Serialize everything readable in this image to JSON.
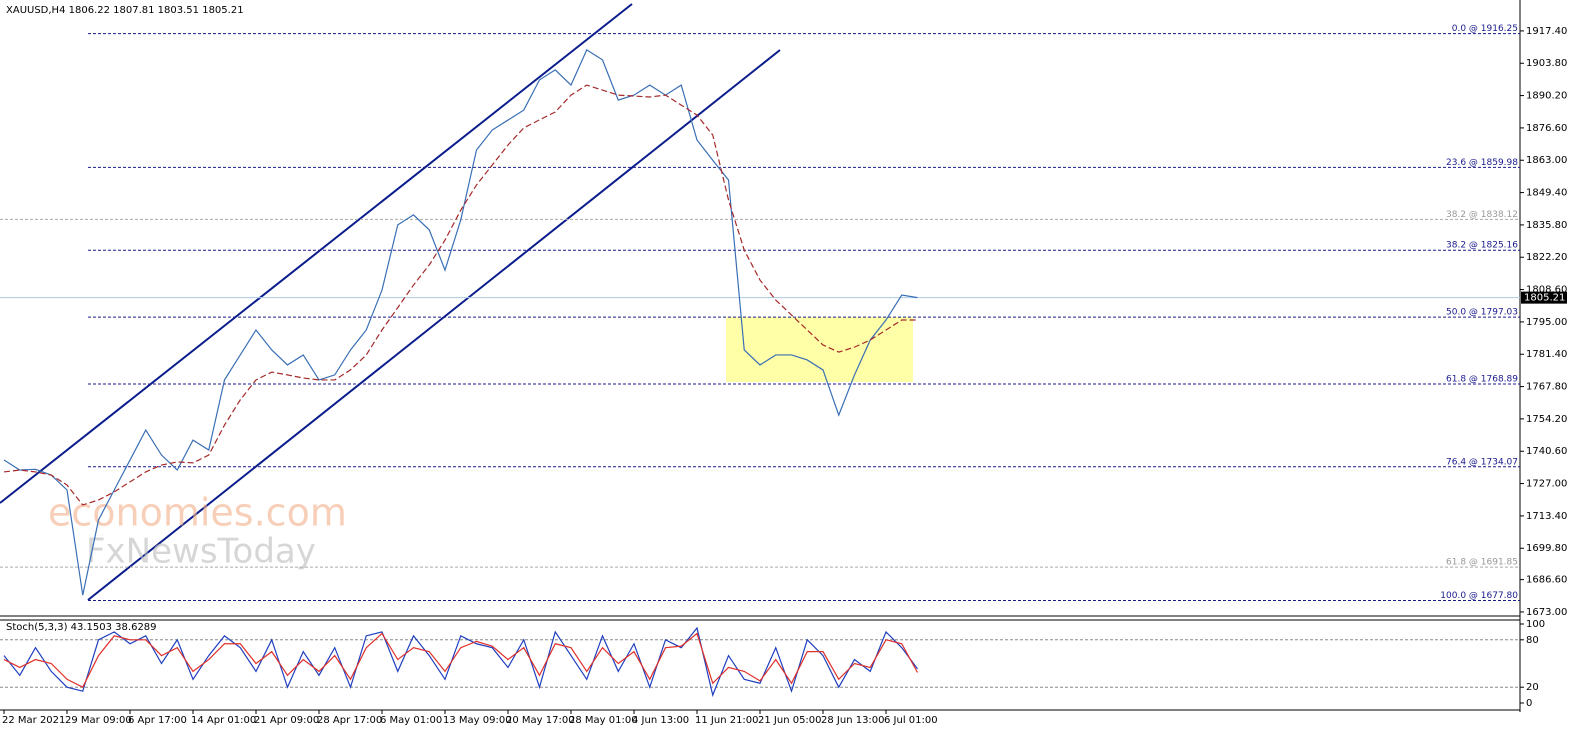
{
  "chart_data": [
    {
      "type": "price",
      "header": "XAUUSD,H4  1806.22 1807.81 1803.51 1805.21",
      "categories": [
        "22 Mar 2021",
        null,
        null,
        null,
        "29 Mar 09:00",
        null,
        null,
        null,
        "6 Apr 17:00",
        null,
        null,
        null,
        "14 Apr 01:00",
        null,
        null,
        null,
        "21 Apr 09:00",
        null,
        null,
        null,
        "28 Apr 17:00",
        null,
        null,
        null,
        "6 May 01:00",
        null,
        null,
        null,
        "13 May 09:00",
        null,
        null,
        null,
        "20 May 17:00",
        null,
        null,
        null,
        "28 May 01:00",
        null,
        null,
        null,
        "4 Jun 13:00",
        null,
        null,
        null,
        "11 Jun 21:00",
        null,
        null,
        null,
        "21 Jun 05:00",
        null,
        null,
        null,
        "28 Jun 13:00",
        null,
        null,
        null,
        "6 Jul 01:00",
        null,
        null
      ],
      "series": [
        {
          "color": "#3a6fb5",
          "values": [
            1736.9,
            1732.7,
            1733,
            1730.6,
            1724.3,
            1680.1,
            1711.7,
            1724.3,
            1736.9,
            1749.5,
            1739,
            1732.7,
            1745.3,
            1741.1,
            1770.6,
            1781.1,
            1791.6,
            1783.2,
            1776.9,
            1781.1,
            1770.6,
            1772.7,
            1783.2,
            1791.6,
            1808.4,
            1835.8,
            1840,
            1833.7,
            1816.8,
            1837.9,
            1867.3,
            1875.7,
            1879.9,
            1884.1,
            1896.8,
            1901,
            1894.6,
            1909.4,
            1905.2,
            1888.3,
            1890.4,
            1894.6,
            1890.4,
            1894.6,
            1871.5,
            1863,
            1854.7,
            1783.2,
            1776.9,
            1781.1,
            1781.1,
            1779,
            1774.8,
            1755.8,
            1772.7,
            1787.4,
            1795.8,
            1806.3,
            1805.21
          ]
        },
        {
          "color": "#a52a2a",
          "values": [
            1731.9,
            1732.7,
            1731.9,
            1730.6,
            1726.4,
            1718,
            1720.1,
            1723.5,
            1727.7,
            1731.9,
            1734.8,
            1736.1,
            1735.7,
            1739,
            1751.6,
            1762.2,
            1770.6,
            1773.9,
            1772.7,
            1771.4,
            1770.6,
            1770.6,
            1774.8,
            1781.1,
            1791.6,
            1801,
            1810.5,
            1819,
            1829.4,
            1842,
            1852.6,
            1861,
            1869.4,
            1876.6,
            1880,
            1883.3,
            1890.4,
            1894.6,
            1892.5,
            1890.4,
            1890,
            1889.6,
            1890.4,
            1886.2,
            1882,
            1873.6,
            1846.3,
            1825.2,
            1812.6,
            1804.2,
            1797.9,
            1791.6,
            1785.3,
            1782.3,
            1784.4,
            1787.4,
            1791.6,
            1795.8,
            1795.8
          ]
        }
      ],
      "current_price": 1805.21,
      "fib_levels": [
        {
          "value": 1916.25,
          "label": "0.0 @ 1916.25"
        },
        {
          "value": 1859.98,
          "label": "23.6 @ 1859.98"
        },
        {
          "value": 1825.16,
          "label": "38.2 @ 1825.16"
        },
        {
          "value": 1797.03,
          "label": "50.0 @ 1797.03"
        },
        {
          "value": 1768.89,
          "label": "61.8 @ 1768.89"
        },
        {
          "value": 1734.07,
          "label": "76.4 @ 1734.07"
        },
        {
          "value": 1677.8,
          "label": "100.0 @ 1677.80"
        }
      ],
      "fib_levels_gray": [
        {
          "value": 1838.12,
          "label": "38.2 @ 1838.12"
        },
        {
          "value": 1691.85,
          "label": "61.8 @ 1691.85"
        }
      ],
      "ylim": [
        1671.3,
        1930.4
      ],
      "yticks": [
        {
          "value": 1917.4,
          "label": "1917.40"
        },
        {
          "value": 1903.8,
          "label": "1903.80"
        },
        {
          "value": 1890.2,
          "label": "1890.20"
        },
        {
          "value": 1876.6,
          "label": "1876.60"
        },
        {
          "value": 1863,
          "label": "1863.00"
        },
        {
          "value": 1849.4,
          "label": "1849.40"
        },
        {
          "value": 1835.8,
          "label": "1835.80"
        },
        {
          "value": 1822.2,
          "label": "1822.20"
        },
        {
          "value": 1808.6,
          "label": "1808.60"
        },
        {
          "value": 1795,
          "label": "1795.00"
        },
        {
          "value": 1781.4,
          "label": "1781.40"
        },
        {
          "value": 1767.8,
          "label": "1767.80"
        },
        {
          "value": 1754.2,
          "label": "1754.20"
        },
        {
          "value": 1740.6,
          "label": "1740.60"
        },
        {
          "value": 1727,
          "label": "1727.00"
        },
        {
          "value": 1713.4,
          "label": "1713.40"
        },
        {
          "value": 1699.8,
          "label": "1699.80"
        },
        {
          "value": 1686.6,
          "label": "1686.60"
        },
        {
          "value": 1673,
          "label": "1673.00"
        }
      ],
      "watermark": [
        "economies.com",
        "FxNewsToday"
      ]
    },
    {
      "type": "stochastic",
      "title": "Stoch(5,3,3) 43.1503 38.6289",
      "series": [
        {
          "color": "#1f3fbf",
          "values": [
            60,
            35,
            70,
            40,
            20,
            15,
            80,
            90,
            75,
            85,
            50,
            80,
            30,
            60,
            85,
            70,
            40,
            80,
            20,
            65,
            35,
            70,
            20,
            85,
            90,
            40,
            85,
            60,
            30,
            85,
            75,
            70,
            45,
            80,
            20,
            90,
            60,
            30,
            85,
            40,
            75,
            20,
            80,
            70,
            95,
            10,
            60,
            30,
            25,
            70,
            15,
            80,
            60,
            20,
            55,
            40,
            90,
            70,
            43.15
          ]
        },
        {
          "color": "#e0302a",
          "values": [
            55,
            45,
            55,
            50,
            30,
            20,
            60,
            85,
            80,
            80,
            60,
            70,
            40,
            55,
            75,
            75,
            50,
            65,
            35,
            55,
            40,
            60,
            30,
            70,
            88,
            55,
            70,
            65,
            40,
            70,
            78,
            72,
            55,
            70,
            35,
            75,
            70,
            40,
            70,
            50,
            65,
            30,
            70,
            72,
            88,
            25,
            45,
            40,
            28,
            55,
            25,
            65,
            65,
            30,
            50,
            45,
            80,
            75,
            38.63
          ]
        }
      ],
      "levels": [
        80,
        20
      ],
      "ylim": [
        0,
        100
      ],
      "yticks": [
        100,
        80,
        20,
        0
      ]
    }
  ]
}
